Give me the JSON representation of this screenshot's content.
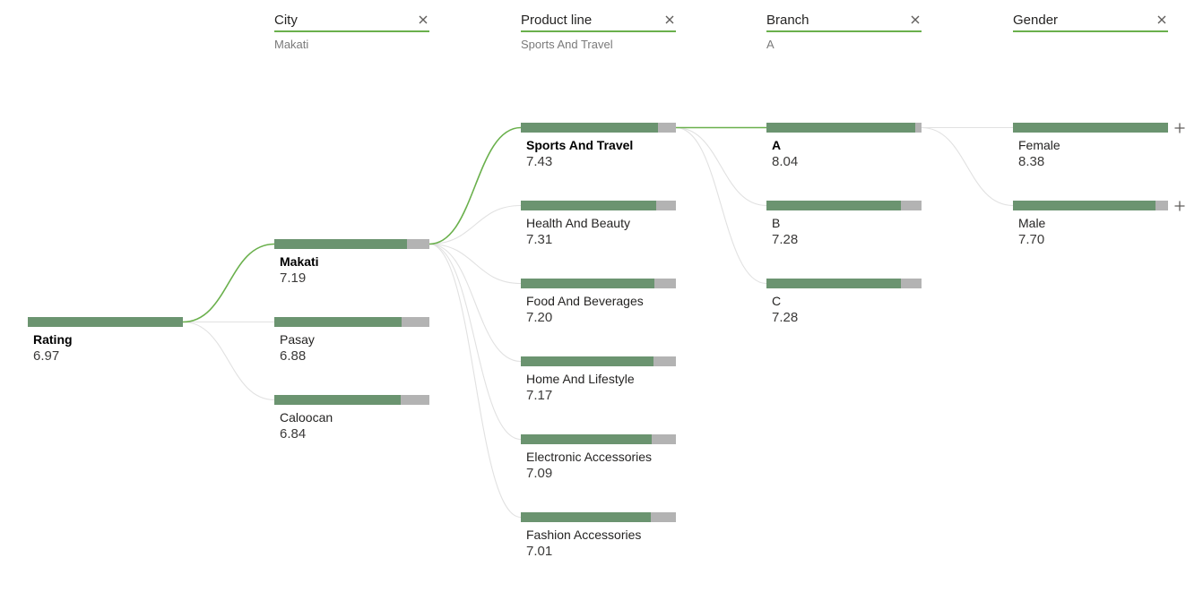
{
  "colors": {
    "bar_fill": "#6b9470",
    "bar_remainder": "#b3b3b3",
    "header_underline": "#6ab04c",
    "active_path": "#6ab04c",
    "inactive_path": "#e1e1e1"
  },
  "headers": [
    {
      "title": "City",
      "subtitle": "Makati",
      "close_icon": "close-icon"
    },
    {
      "title": "Product line",
      "subtitle": "Sports And Travel",
      "close_icon": "close-icon"
    },
    {
      "title": "Branch",
      "subtitle": "A",
      "close_icon": "close-icon"
    },
    {
      "title": "Gender",
      "subtitle": "",
      "close_icon": "close-icon"
    }
  ],
  "scale_max": 8.38,
  "root": {
    "label": "Rating",
    "value": "6.97"
  },
  "levels": [
    {
      "nodes": [
        {
          "label": "Makati",
          "value": "7.19",
          "selected": true
        },
        {
          "label": "Pasay",
          "value": "6.88",
          "selected": false
        },
        {
          "label": "Caloocan",
          "value": "6.84",
          "selected": false
        }
      ]
    },
    {
      "nodes": [
        {
          "label": "Sports And Travel",
          "value": "7.43",
          "selected": true
        },
        {
          "label": "Health And Beauty",
          "value": "7.31",
          "selected": false
        },
        {
          "label": "Food And Beverages",
          "value": "7.20",
          "selected": false
        },
        {
          "label": "Home And Lifestyle",
          "value": "7.17",
          "selected": false
        },
        {
          "label": "Electronic Accessories",
          "value": "7.09",
          "selected": false
        },
        {
          "label": "Fashion Accessories",
          "value": "7.01",
          "selected": false
        }
      ]
    },
    {
      "nodes": [
        {
          "label": "A",
          "value": "8.04",
          "selected": true
        },
        {
          "label": "B",
          "value": "7.28",
          "selected": false
        },
        {
          "label": "C",
          "value": "7.28",
          "selected": false
        }
      ]
    },
    {
      "nodes": [
        {
          "label": "Female",
          "value": "8.38",
          "selected": false,
          "expand_icon": "plus-icon"
        },
        {
          "label": "Male",
          "value": "7.70",
          "selected": false,
          "expand_icon": "plus-icon"
        }
      ]
    }
  ]
}
